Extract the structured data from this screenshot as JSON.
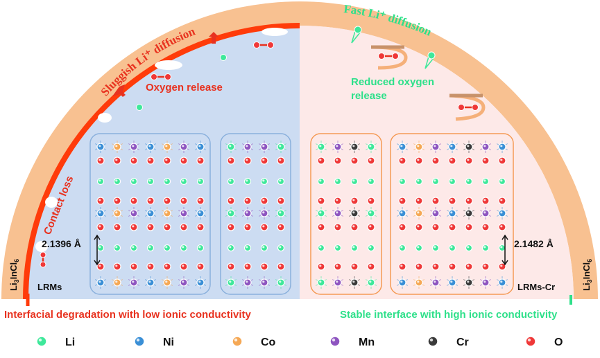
{
  "left": {
    "arc_label": "Sluggish Li⁺ diffusion",
    "oxygen_release": "Oxygen release",
    "contact_loss": "Contact loss",
    "spacing": "2.1396 Å",
    "material": "LRMs",
    "electrolyte": "Li3InCl6",
    "caption": "Interfacial degradation with low ionic conductivity",
    "caption_color": "#e8321f",
    "lattices": [
      {
        "columns": [
          "Ni",
          "Co",
          "Mn",
          "Ni",
          "Co",
          "Mn",
          "Ni"
        ]
      },
      {
        "columns": [
          "Li",
          "Mn",
          "Mn",
          "Li"
        ]
      }
    ]
  },
  "right": {
    "arc_label": "Fast  Li⁺ diffusion",
    "oxygen_release": "Reduced oxygen release",
    "spacing": "2.1482 Å",
    "material": "LRMs-Cr",
    "electrolyte": "Li3InCl6",
    "caption": "Stable interface with high ionic conductivity",
    "caption_color": "#2ee08a",
    "lattices": [
      {
        "columns": [
          "Li",
          "Mn",
          "Cr",
          "Li"
        ]
      },
      {
        "columns": [
          "Ni",
          "Co",
          "Mn",
          "Ni",
          "Cr",
          "Mn",
          "Ni"
        ]
      }
    ]
  },
  "legend": [
    {
      "label": "Li",
      "color": "#3ee89a"
    },
    {
      "label": "Ni",
      "color": "#3a8fd6"
    },
    {
      "label": "Co",
      "color": "#f5a855"
    },
    {
      "label": "Mn",
      "color": "#8e55c0"
    },
    {
      "label": "Cr",
      "color": "#3a3a3a"
    },
    {
      "label": "O",
      "color": "#ef3838"
    }
  ]
}
